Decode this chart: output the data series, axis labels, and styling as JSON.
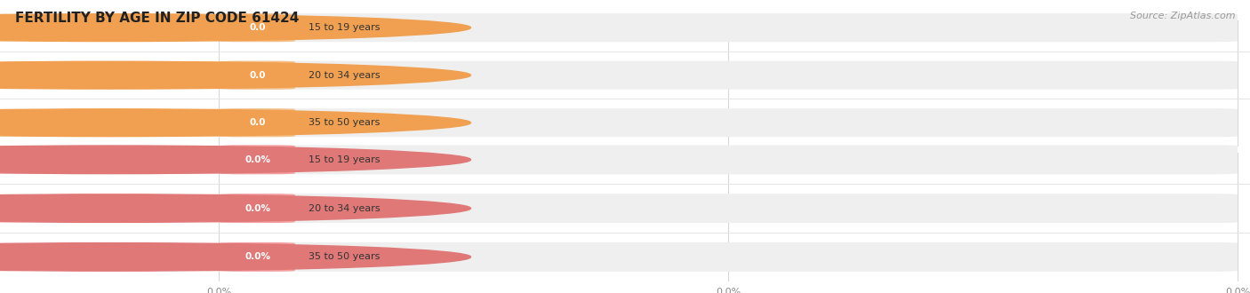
{
  "title": "FERTILITY BY AGE IN ZIP CODE 61424",
  "source": "Source: ZipAtlas.com",
  "top_series": {
    "categories": [
      "15 to 19 years",
      "20 to 34 years",
      "35 to 50 years"
    ],
    "values": [
      0.0,
      0.0,
      0.0
    ],
    "bar_bg_color": "#efefef",
    "bar_color": "#f5c08a",
    "circle_color": "#f0a050",
    "value_label": "0.0",
    "tick_labels": [
      "0.0",
      "0.0",
      "0.0"
    ]
  },
  "bottom_series": {
    "categories": [
      "15 to 19 years",
      "20 to 34 years",
      "35 to 50 years"
    ],
    "values": [
      0.0,
      0.0,
      0.0
    ],
    "bar_bg_color": "#efefef",
    "bar_color": "#f5a0a0",
    "circle_color": "#e07878",
    "value_label": "0.0%",
    "tick_labels": [
      "0.0%",
      "0.0%",
      "0.0%"
    ]
  },
  "background_color": "#ffffff",
  "title_fontsize": 11,
  "source_fontsize": 8,
  "bar_label_fontsize": 7.5,
  "category_fontsize": 8,
  "tick_fontsize": 8,
  "grid_color": "#d8d8d8",
  "hline_color": "#e4e4e4",
  "tick_color": "#888888",
  "cat_label_color": "#333333",
  "val_label_color": "#ffffff"
}
